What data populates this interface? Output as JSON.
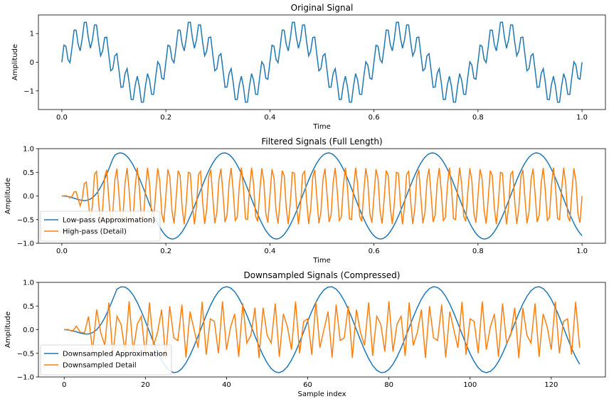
{
  "chart_data": [
    {
      "type": "line",
      "title": "Original Signal",
      "xlabel": "Time",
      "ylabel": "Amplitude",
      "xlim": [
        -0.045,
        1.045
      ],
      "ylim": [
        -1.65,
        1.65
      ],
      "xticks": [
        0.0,
        0.2,
        0.4,
        0.6,
        0.8,
        1.0
      ],
      "xtick_labels": [
        "0.0",
        "0.2",
        "0.4",
        "0.6",
        "0.8",
        "1.0"
      ],
      "yticks": [
        -1,
        0,
        1
      ],
      "ytick_labels": [
        "−1",
        "0",
        "1"
      ],
      "grid": false,
      "legend": null,
      "x_range": [
        0,
        1
      ],
      "series": [
        {
          "generator": "sine_sum",
          "samples": 256,
          "components": [
            {
              "amplitude": 1.0,
              "frequency": 5
            },
            {
              "amplitude": 0.5,
              "frequency": 50
            }
          ],
          "color": "#1f77b4"
        }
      ]
    },
    {
      "type": "line",
      "title": "Filtered Signals (Full Length)",
      "xlabel": "Time",
      "ylabel": "Amplitude",
      "xlim": [
        -0.045,
        1.045
      ],
      "ylim": [
        -1.0,
        1.0
      ],
      "xticks": [
        0.0,
        0.2,
        0.4,
        0.6,
        0.8,
        1.0
      ],
      "xtick_labels": [
        "0.0",
        "0.2",
        "0.4",
        "0.6",
        "0.8",
        "1.0"
      ],
      "yticks": [
        -1.0,
        -0.5,
        0.0,
        0.5,
        1.0
      ],
      "ytick_labels": [
        "−1.0",
        "−0.5",
        "0.0",
        "0.5",
        "1.0"
      ],
      "grid": false,
      "legend": "lower-left",
      "x_range": [
        0,
        1
      ],
      "series": [
        {
          "name": "Low-pass (Approximation)",
          "generator": "filtered_sine",
          "samples": 256,
          "amplitude": 0.91,
          "frequency": 5,
          "phase_delay": 0.0625,
          "ramp_start": 0.0,
          "ramp_end": 0.1,
          "color": "#1f77b4"
        },
        {
          "name": "High-pass (Detail)",
          "generator": "filtered_sine",
          "samples": 256,
          "amplitude": 0.6,
          "frequency": 50,
          "phase_delay": 0.0,
          "ramp_start": 0.0,
          "ramp_end": 0.06,
          "color": "#ff7f0e"
        }
      ]
    },
    {
      "type": "line",
      "title": "Downsampled Signals (Compressed)",
      "xlabel": "Sample index",
      "ylabel": "Amplitude",
      "xlim": [
        -6.35,
        133.35
      ],
      "ylim": [
        -1.0,
        1.0
      ],
      "xticks": [
        0,
        20,
        40,
        60,
        80,
        100,
        120
      ],
      "xtick_labels": [
        "0",
        "20",
        "40",
        "60",
        "80",
        "100",
        "120"
      ],
      "yticks": [
        -1.0,
        -0.5,
        0.0,
        0.5,
        1.0
      ],
      "ytick_labels": [
        "−1.0",
        "−0.5",
        "0.0",
        "0.5",
        "1.0"
      ],
      "grid": false,
      "legend": "lower-left",
      "x_range": [
        0,
        127
      ],
      "series": [
        {
          "name": "Downsampled Approximation",
          "generator": "downsampled_sine",
          "samples": 128,
          "amplitude": 0.91,
          "period": 25.6,
          "phase_delay": 8,
          "ramp_start": 0,
          "ramp_end": 13,
          "color": "#1f77b4"
        },
        {
          "name": "Downsampled Detail",
          "generator": "downsampled_sine",
          "samples": 128,
          "amplitude": 0.6,
          "period": 2.56,
          "phase_delay": 0,
          "ramp_start": 0,
          "ramp_end": 8,
          "color": "#ff7f0e"
        }
      ]
    }
  ]
}
